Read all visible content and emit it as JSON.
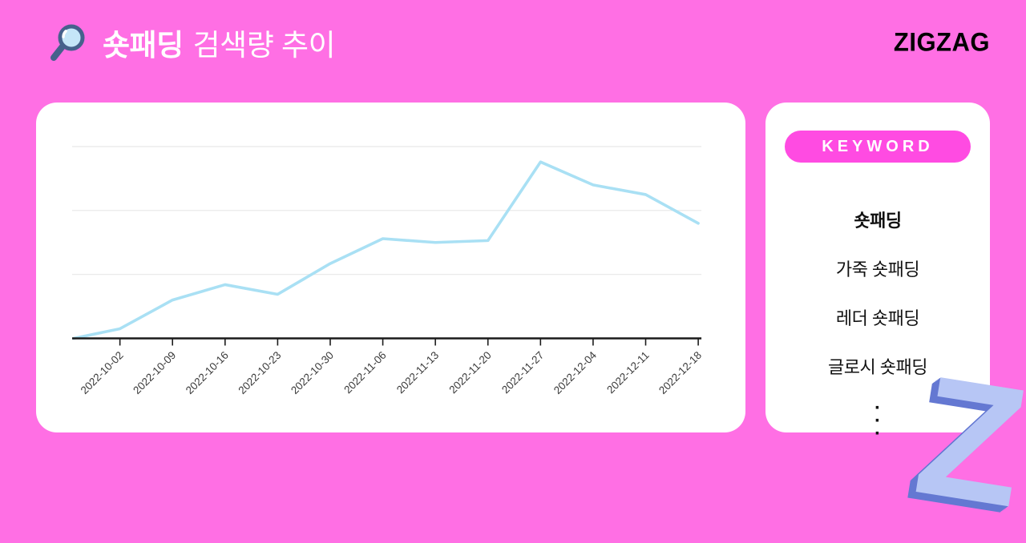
{
  "page": {
    "background": "#FF6FE4"
  },
  "header": {
    "icon": "magnifier-icon",
    "title_keyword": "숏패딩",
    "title_suffix": "검색량 추이",
    "brand": "ZIGZAG"
  },
  "chart_data": {
    "type": "line",
    "title": "숏패딩 검색량 추이",
    "categories": [
      "2022-10-02",
      "2022-10-09",
      "2022-10-16",
      "2022-10-23",
      "2022-10-30",
      "2022-11-06",
      "2022-11-13",
      "2022-11-20",
      "2022-11-27",
      "2022-12-04",
      "2022-12-11",
      "2022-12-18"
    ],
    "values": [
      5,
      20,
      28,
      23,
      39,
      52,
      50,
      51,
      92,
      80,
      75,
      60
    ],
    "lead_in_value": 0,
    "xlabel": "",
    "ylabel": "",
    "ylim": [
      0,
      100
    ],
    "grid": "horizontal",
    "gridline_values": [
      33.3,
      66.7,
      100
    ],
    "legend": false,
    "line_color": "#A9E0F4",
    "grid_color": "#E7E7E7",
    "axis_color": "#1A1A1A",
    "label_color": "#3A3A3A"
  },
  "keyword_panel": {
    "badge": "KEYWORD",
    "badge_color": "#FF4BE2",
    "items": [
      {
        "label": "숏패딩",
        "emphasis": true
      },
      {
        "label": "가죽 숏패딩",
        "emphasis": false
      },
      {
        "label": "레더 숏패딩",
        "emphasis": false
      },
      {
        "label": "글로시 숏패딩",
        "emphasis": false
      }
    ],
    "more_dot": "·"
  },
  "footer_mark": {
    "letter": "Z",
    "color": "#B7C6F5",
    "shadow_color": "#6478D2"
  }
}
